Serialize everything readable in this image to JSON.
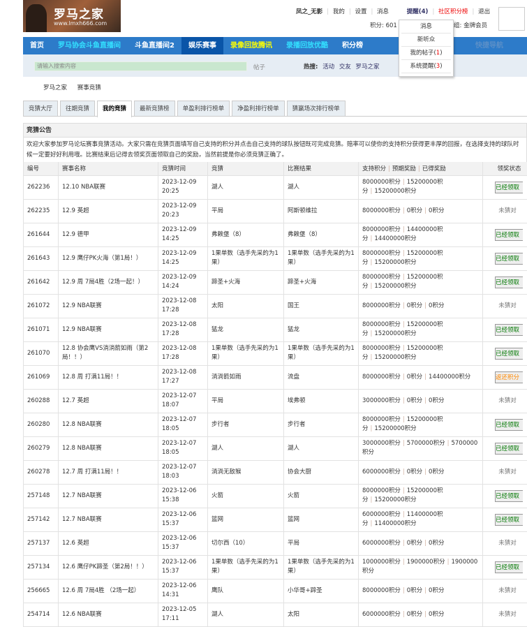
{
  "site": {
    "logo_title": "罗马之家",
    "logo_url": "www.lmxh666.com"
  },
  "user": {
    "name": "凤之_无影",
    "links": [
      "我的",
      "设置",
      "消息"
    ],
    "reminders": "提醒(4)",
    "rank": "社区积分榜",
    "logout": "退出",
    "points": "积分: 601",
    "group": "组: 金牌会员"
  },
  "dropdown": [
    {
      "label": "消息"
    },
    {
      "label": "新听众"
    },
    {
      "label": "我的帖子",
      "count": "1"
    },
    {
      "label": "系统提醒",
      "count": "3"
    }
  ],
  "nav": {
    "items": [
      {
        "label": "首页",
        "style": "white"
      },
      {
        "label": "罗马协会斗鱼直播间",
        "style": "cyan"
      },
      {
        "label": "斗鱼直播间2",
        "style": "white"
      },
      {
        "label": "娱乐赛事",
        "style": "active"
      },
      {
        "label": "录像回放腾讯",
        "style": "yellow"
      },
      {
        "label": "录播回放优酷",
        "style": "cyan"
      },
      {
        "label": "积分榜",
        "style": "white"
      }
    ],
    "quick": "快捷导航"
  },
  "search": {
    "placeholder": "请输入搜索内容",
    "type": "帖子",
    "hot_label": "热搜:",
    "hot": [
      "活动",
      "交友",
      "罗马之家"
    ]
  },
  "breadcrumb": [
    "罗马之家",
    "赛事竞猜"
  ],
  "tabs": [
    "竞猜大厅",
    "往期竞猜",
    "我的竞猜",
    "最新竞猜榜",
    "单盈利排行榜单",
    "净盈利排行榜单",
    "猜赢场次排行榜单"
  ],
  "active_tab": 2,
  "notice": {
    "title": "竞猜公告",
    "body": "欢迎大家参加罗马论坛赛事竞猜活动。大家只需在竞猜页面填写自己支持的积分并点击自己支持的球队按钮既可完成竞猜。赔率可以使你的支持积分获得更丰厚的回报，在选择支持的球队时候一定要好好利用哦。比赛结束后记得去领奖页面领取自己的奖励，当然前提是你必须竞猜正确了。"
  },
  "table": {
    "headers": [
      "编号",
      "赛事名称",
      "竞猜时间",
      "竞猜",
      "比赛结果",
      "支持积分",
      "预期奖励",
      "已得奖励",
      "领奖状态"
    ],
    "rows": [
      [
        "262236",
        "12.10 NBA联赛",
        "2023-12-09 20:25",
        "湖人",
        "湖人",
        "8000000积分",
        "15200000积分",
        "15200000积分",
        "已经领取"
      ],
      [
        "262235",
        "12.9 英超",
        "2023-12-09 20:23",
        "平局",
        "阿斯顿维拉",
        "8000000积分",
        "0积分",
        "0积分",
        "未猜对"
      ],
      [
        "261644",
        "12.9 德甲",
        "2023-12-09 14:25",
        "弗赖堡（8）",
        "弗赖堡（8）",
        "8000000积分",
        "14400000积分",
        "14400000积分",
        "已经领取"
      ],
      [
        "261643",
        "12.9 鹰仔PK火海（第1局！）",
        "2023-12-09 14:25",
        "1果单数（选手先采的为1果）",
        "1果单数（选手先采的为1果）",
        "8000000积分",
        "15200000积分",
        "15200000积分",
        "已经领取"
      ],
      [
        "261642",
        "12.9 周 7局4胜（2场一起！）",
        "2023-12-09 14:24",
        "蹄圣+火海",
        "蹄圣+火海",
        "8000000积分",
        "15200000积分",
        "15200000积分",
        "已经领取"
      ],
      [
        "261072",
        "12.9 NBA联赛",
        "2023-12-08 17:28",
        "太阳",
        "国王",
        "8000000积分",
        "0积分",
        "0积分",
        "未猜对"
      ],
      [
        "261071",
        "12.9 NBA联赛",
        "2023-12-08 17:28",
        "猛龙",
        "猛龙",
        "8000000积分",
        "15200000积分",
        "15200000积分",
        "已经领取"
      ],
      [
        "261070",
        "12.8 协会鹰VS淌淌箭如雨（第2局！！）",
        "2023-12-08 17:28",
        "1果单数（选手先采的为1果）",
        "1果单数（选手先采的为1果）",
        "8000000积分",
        "15200000积分",
        "15200000积分",
        "已经领取"
      ],
      [
        "261069",
        "12.8 周 打满11局！！",
        "2023-12-08 17:27",
        "淌淌箭如雨",
        "流盘",
        "8000000积分",
        "0积分",
        "14400000积分",
        "返还积分"
      ],
      [
        "260288",
        "12.7 英超",
        "2023-12-07 18:07",
        "平局",
        "埃弗顿",
        "3000000积分",
        "0积分",
        "0积分",
        "未猜对"
      ],
      [
        "260280",
        "12.8 NBA联赛",
        "2023-12-07 18:05",
        "步行者",
        "步行者",
        "8000000积分",
        "15200000积分",
        "15200000积分",
        "已经领取"
      ],
      [
        "260279",
        "12.8 NBA联赛",
        "2023-12-07 18:05",
        "湖人",
        "湖人",
        "3000000积分",
        "5700000积分",
        "5700000积分",
        "已经领取"
      ],
      [
        "260278",
        "12.7 周 打满11局！！",
        "2023-12-07 18:03",
        "淌淌无敌猴",
        "协会大厨",
        "6000000积分",
        "0积分",
        "0积分",
        "未猜对"
      ],
      [
        "257148",
        "12.7 NBA联赛",
        "2023-12-06 15:38",
        "火箭",
        "火箭",
        "8000000积分",
        "15200000积分",
        "15200000积分",
        "已经领取"
      ],
      [
        "257142",
        "12.7 NBA联赛",
        "2023-12-06 15:37",
        "篮网",
        "篮网",
        "6000000积分",
        "11400000积分",
        "11400000积分",
        "已经领取"
      ],
      [
        "257137",
        "12.6 英超",
        "2023-12-06 15:37",
        "切尔西（10）",
        "平局",
        "6000000积分",
        "0积分",
        "0积分",
        "未猜对"
      ],
      [
        "257134",
        "12.6 鹰仔PK蹄圣（第2局！！）",
        "2023-12-06 15:37",
        "1果单数（选手先采的为1果）",
        "1果单数（选手先采的为1果）",
        "1000000积分",
        "1900000积分",
        "1900000积分",
        "已经领取"
      ],
      [
        "256665",
        "12.6 周 7局4胜 （2场一起）",
        "2023-12-06 14:31",
        "鹰队",
        "小华哥+蹄圣",
        "8000000积分",
        "0积分",
        "0积分",
        "未猜对"
      ],
      [
        "254714",
        "12.6 NBA联赛",
        "2023-12-05 17:11",
        "湖人",
        "太阳",
        "6000000积分",
        "0积分",
        "0积分",
        "未猜对"
      ]
    ]
  },
  "colors": {
    "nav": "#2d7bc9",
    "nav_active": "#0a55a8",
    "claimed": "#007700",
    "refund": "#ff8800"
  }
}
